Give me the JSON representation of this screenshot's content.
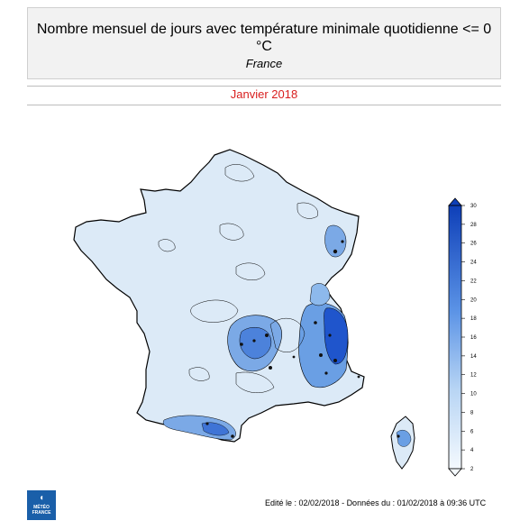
{
  "header": {
    "title": "Nombre mensuel de jours avec température minimale quotidienne <= 0 °C",
    "region": "France",
    "period": "Janvier 2018"
  },
  "legend": {
    "ticks": [
      "2",
      "4",
      "6",
      "8",
      "10",
      "12",
      "14",
      "16",
      "18",
      "20",
      "22",
      "24",
      "26",
      "28",
      "30"
    ],
    "colors": {
      "low": "#eaf3fb",
      "mid": "#8db9ec",
      "high": "#1c50c8",
      "max": "#0a2f9a",
      "land": "#dceaf7"
    }
  },
  "footer": {
    "credit": "Edité le : 02/02/2018 - Données du : 01/02/2018 à 09:36 UTC",
    "logo_text": "MÉTÉO FRANCE"
  }
}
